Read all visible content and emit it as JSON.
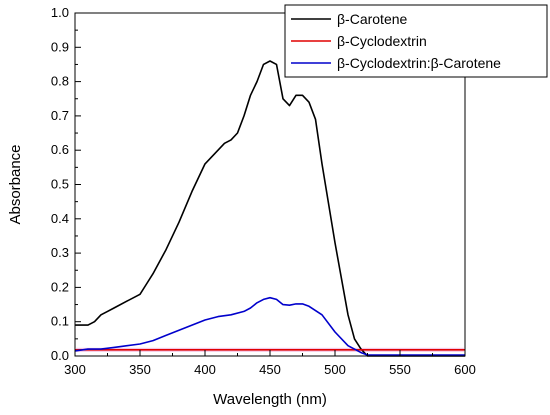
{
  "chart_data": {
    "type": "line",
    "title": "",
    "xlabel": "Wavelength (nm)",
    "ylabel": "Absorbance",
    "xlim": [
      300,
      600
    ],
    "ylim": [
      0.0,
      1.0
    ],
    "xticks": [
      300,
      350,
      400,
      450,
      500,
      550,
      600
    ],
    "xtick_labels": [
      "300",
      "350",
      "400",
      "450",
      "500",
      "550",
      "600"
    ],
    "yticks": [
      0.0,
      0.1,
      0.2,
      0.3,
      0.4,
      0.5,
      0.6,
      0.7,
      0.8,
      0.9,
      1.0
    ],
    "ytick_labels": [
      "0.0",
      "0.1",
      "0.2",
      "0.3",
      "0.4",
      "0.5",
      "0.6",
      "0.7",
      "0.8",
      "0.9",
      "1.0"
    ],
    "grid": false,
    "legend_position": "top-right",
    "series": [
      {
        "name": "β-Carotene",
        "color": "#000000",
        "x": [
          300,
          310,
          315,
          320,
          325,
          330,
          340,
          350,
          355,
          360,
          370,
          380,
          390,
          400,
          405,
          410,
          415,
          420,
          425,
          430,
          435,
          440,
          445,
          450,
          455,
          460,
          465,
          470,
          475,
          480,
          485,
          490,
          500,
          510,
          515,
          520,
          525,
          600
        ],
        "y": [
          0.09,
          0.09,
          0.1,
          0.12,
          0.13,
          0.14,
          0.16,
          0.18,
          0.21,
          0.24,
          0.31,
          0.39,
          0.48,
          0.56,
          0.58,
          0.6,
          0.62,
          0.63,
          0.65,
          0.7,
          0.76,
          0.8,
          0.85,
          0.86,
          0.85,
          0.75,
          0.73,
          0.76,
          0.76,
          0.74,
          0.69,
          0.56,
          0.33,
          0.12,
          0.05,
          0.02,
          0.0,
          0.0
        ]
      },
      {
        "name": "β-Cyclodextrin",
        "color": "#e00000",
        "x": [
          300,
          600
        ],
        "y": [
          0.018,
          0.018
        ]
      },
      {
        "name": "β-Cyclodextrin:β-Carotene",
        "color": "#0000cc",
        "x": [
          300,
          310,
          320,
          330,
          340,
          350,
          360,
          370,
          380,
          390,
          400,
          410,
          420,
          430,
          435,
          440,
          445,
          450,
          455,
          460,
          465,
          470,
          475,
          480,
          490,
          500,
          510,
          520,
          525,
          600
        ],
        "y": [
          0.015,
          0.02,
          0.02,
          0.025,
          0.03,
          0.035,
          0.045,
          0.06,
          0.075,
          0.09,
          0.105,
          0.115,
          0.12,
          0.13,
          0.14,
          0.155,
          0.165,
          0.17,
          0.165,
          0.15,
          0.148,
          0.152,
          0.152,
          0.145,
          0.12,
          0.07,
          0.03,
          0.01,
          0.003,
          0.003
        ]
      }
    ]
  }
}
